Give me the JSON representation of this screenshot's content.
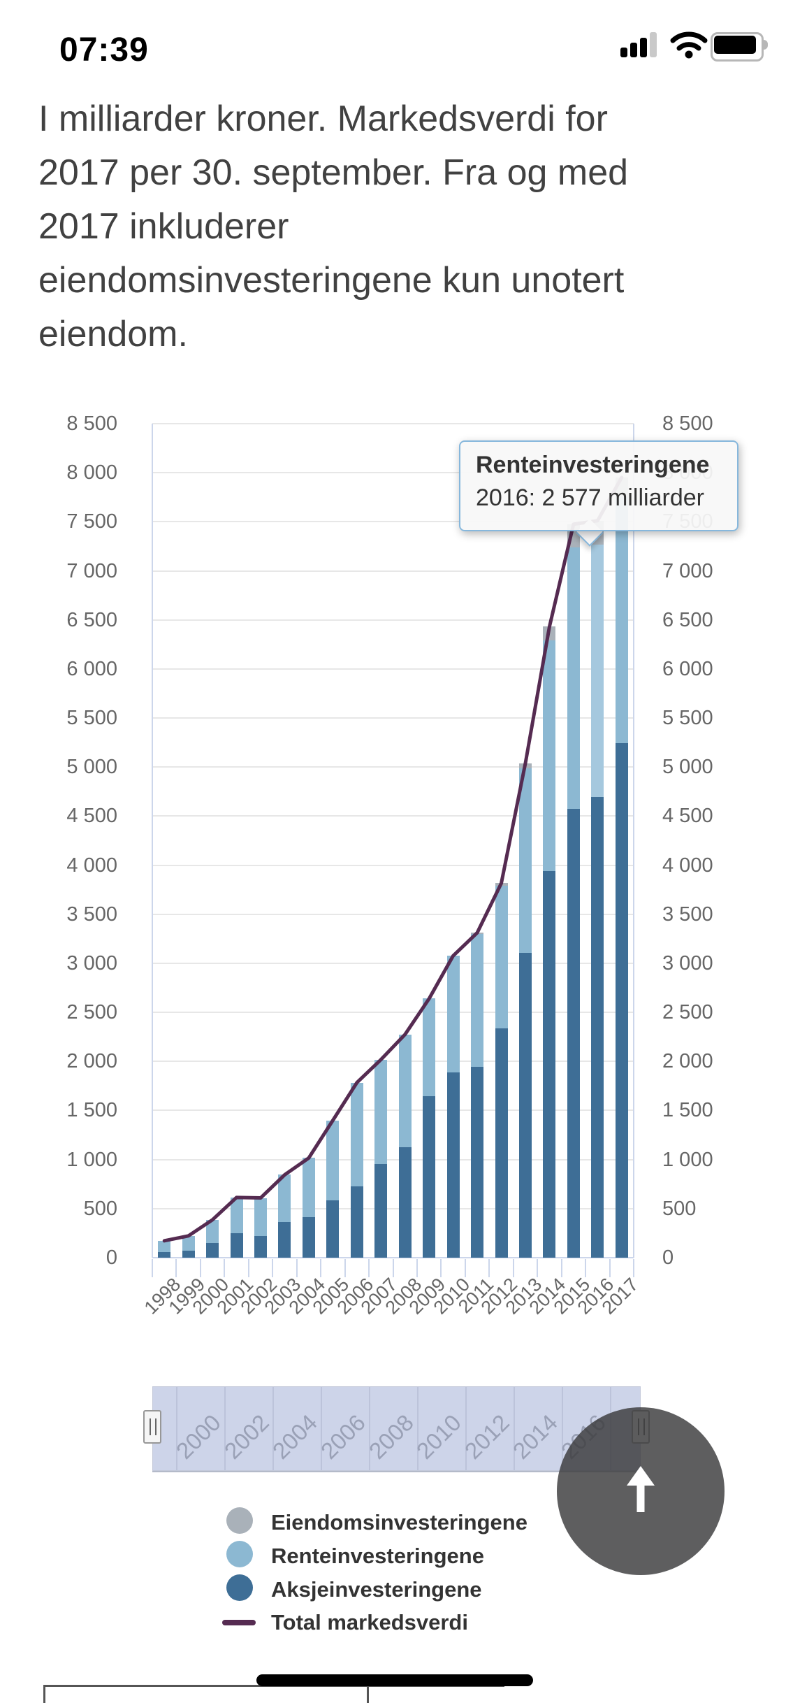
{
  "status_bar": {
    "time": "07:39",
    "signal_level": "3 of 4 bars",
    "wifi": "full",
    "battery": "full"
  },
  "header": {
    "lines": [
      "I milliarder kroner. Markedsverdi for",
      "2017 per 30. september. Fra og med",
      "2017 inkluderer",
      "eiendomsinvesteringene kun unotert",
      "eiendom."
    ]
  },
  "tooltip": {
    "title": "Renteinvesteringene",
    "body": "2016: 2 577 milliarder",
    "year": 2016,
    "value": 2577,
    "unit": "milliarder"
  },
  "chart_data": {
    "type": "bar",
    "subtype": "stacked-column-with-line",
    "categories": [
      1998,
      1999,
      2000,
      2001,
      2002,
      2003,
      2004,
      2005,
      2006,
      2007,
      2008,
      2009,
      2010,
      2011,
      2012,
      2013,
      2014,
      2015,
      2016,
      2017
    ],
    "series": [
      {
        "name": "Aksjeinvesteringene",
        "type": "column",
        "color": "#3e6e96",
        "values": [
          58,
          70,
          152,
          246,
          221,
          361,
          416,
          582,
          726,
          958,
          1129,
          1644,
          1891,
          1945,
          2336,
          3107,
          3940,
          4572,
          4692,
          5242
        ]
      },
      {
        "name": "Renteinvesteringene",
        "type": "column",
        "color": "#8cb8d2",
        "highlight_color": "#a5c8de",
        "values": [
          114,
          152,
          234,
          368,
          388,
          484,
          600,
          817,
          1058,
          1061,
          1146,
          996,
          1186,
          1356,
          1455,
          1879,
          2350,
          2668,
          2577,
          2513
        ]
      },
      {
        "name": "Eiendomsinvesteringene",
        "type": "column",
        "color": "#a9b1b9",
        "values": [
          0,
          0,
          0,
          0,
          0,
          0,
          0,
          0,
          0,
          0,
          0,
          0,
          0,
          11,
          25,
          52,
          141,
          235,
          242,
          197
        ]
      },
      {
        "name": "Total markedsverdi",
        "type": "line",
        "color": "#552b51",
        "values": [
          172,
          222,
          386,
          614,
          609,
          845,
          1016,
          1399,
          1784,
          2019,
          2275,
          2640,
          3077,
          3312,
          3816,
          5038,
          6431,
          7475,
          7511,
          7952
        ]
      }
    ],
    "hover": {
      "category": 2016,
      "series": "Renteinvesteringene"
    },
    "ylabel": "",
    "xlabel": "",
    "ylim": [
      0,
      8500
    ],
    "ytick_step": 500,
    "thousands_separator": " ",
    "grid": true,
    "legend_position": "bottom",
    "legend": [
      {
        "label": "Eiendomsinvesteringene",
        "marker": "circle",
        "color": "#a9b1b9"
      },
      {
        "label": "Renteinvesteringene",
        "marker": "circle",
        "color": "#8cb8d2"
      },
      {
        "label": "Aksjeinvesteringene",
        "marker": "circle",
        "color": "#3e6e96"
      },
      {
        "label": "Total markedsverdi",
        "marker": "line",
        "color": "#552b51"
      }
    ]
  },
  "navigator": {
    "labels": [
      "2000",
      "2002",
      "2004",
      "2006",
      "2008",
      "2010",
      "2012",
      "2014",
      "2016"
    ]
  },
  "colors": {
    "accent_border": "#86b7dc",
    "axis": "#ccd6eb",
    "gridline": "#e7e7e7",
    "label": "#666666"
  }
}
